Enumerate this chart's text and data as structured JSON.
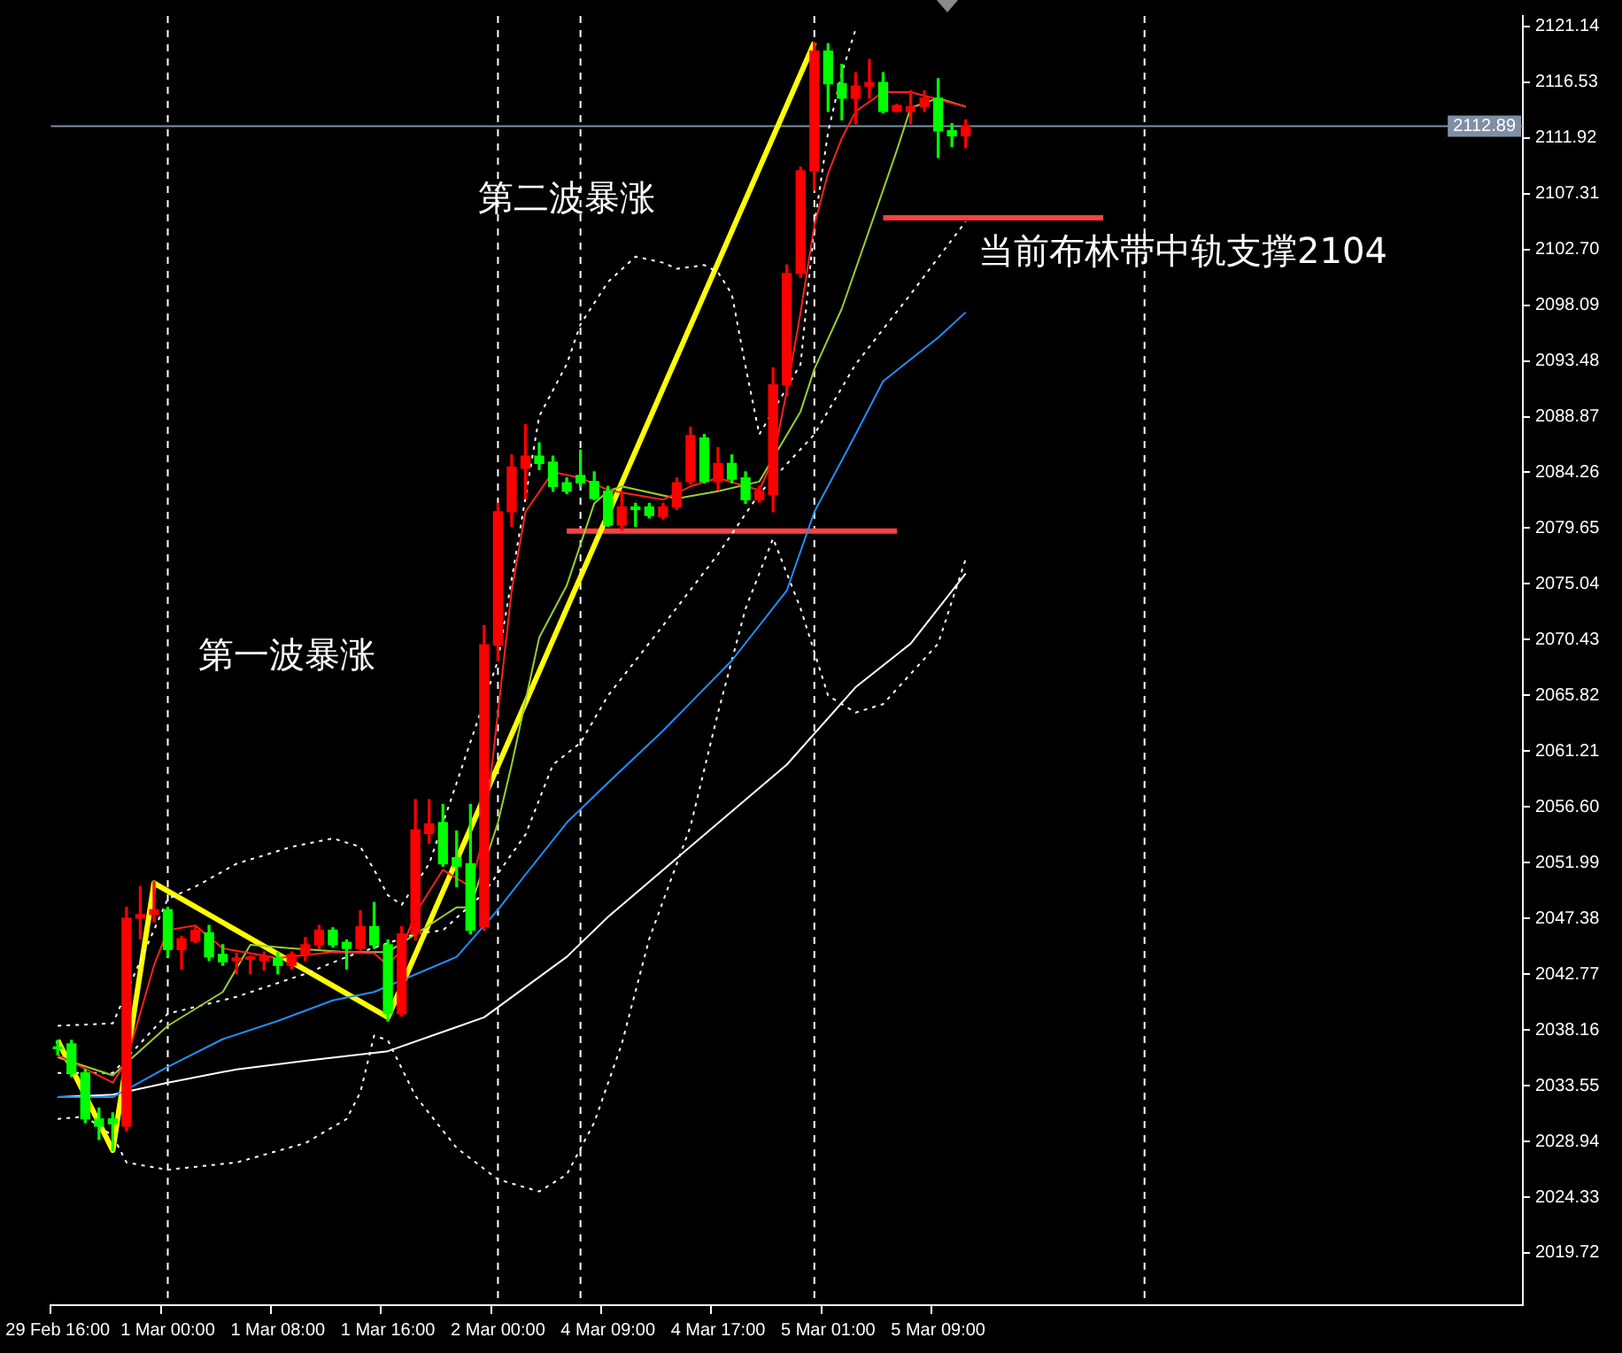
{
  "chart_data": {
    "type": "candlestick",
    "categories": [
      "29 Feb 16:00",
      null,
      null,
      null,
      null,
      null,
      null,
      null,
      "1 Mar 00:00",
      null,
      null,
      null,
      null,
      null,
      null,
      null,
      "1 Mar 08:00",
      null,
      null,
      null,
      null,
      null,
      null,
      null,
      "1 Mar 16:00",
      null,
      null,
      null,
      null,
      null,
      null,
      null,
      "2 Mar 00:00",
      null,
      null,
      null,
      null,
      null,
      null,
      null,
      "4 Mar 09:00",
      null,
      null,
      null,
      null,
      null,
      null,
      null,
      "4 Mar 17:00",
      null,
      null,
      null,
      null,
      null,
      null,
      null,
      "5 Mar 01:00",
      null,
      null,
      null,
      null,
      null,
      null,
      null,
      "5 Mar 09:00",
      null,
      null,
      null,
      null,
      null,
      null,
      null,
      null,
      null,
      null,
      null,
      null,
      null,
      null,
      null,
      null,
      null,
      null,
      null,
      null,
      null,
      null,
      null,
      null,
      null,
      null,
      null,
      null,
      null,
      null,
      null,
      null,
      null,
      null,
      null,
      null,
      null,
      null,
      null,
      null,
      null,
      null
    ],
    "ohlc": [
      [
        2036.7,
        2037.3,
        2036.1,
        2036.6
      ],
      [
        2037.0,
        2037.3,
        2034.3,
        2034.6
      ],
      [
        2034.6,
        2034.9,
        2030.5,
        2030.8
      ],
      [
        2030.8,
        2031.7,
        2029.1,
        2030.2
      ],
      [
        2030.8,
        2031.3,
        2028.2,
        2030.4
      ],
      [
        2030.2,
        2048.3,
        2029.8,
        2047.4
      ],
      [
        2047.4,
        2050.0,
        2045.7,
        2047.7
      ],
      [
        2047.7,
        2050.4,
        2047.1,
        2048.1
      ],
      [
        2048.1,
        2048.3,
        2044.2,
        2044.8
      ],
      [
        2044.8,
        2045.9,
        2043.2,
        2045.7
      ],
      [
        2045.5,
        2046.7,
        2045.4,
        2046.4
      ],
      [
        2046.2,
        2046.8,
        2043.9,
        2044.2
      ],
      [
        2044.4,
        2045.2,
        2043.5,
        2043.8
      ],
      [
        2043.9,
        2044.5,
        2042.8,
        2044.1
      ],
      [
        2044.0,
        2044.3,
        2042.8,
        2044.2
      ],
      [
        2043.9,
        2044.6,
        2043.1,
        2044.2
      ],
      [
        2044.1,
        2044.6,
        2042.8,
        2043.5
      ],
      [
        2043.5,
        2044.6,
        2043.2,
        2044.4
      ],
      [
        2044.4,
        2045.8,
        2043.9,
        2045.2
      ],
      [
        2045.2,
        2046.8,
        2044.9,
        2046.4
      ],
      [
        2046.4,
        2046.6,
        2045.0,
        2045.2
      ],
      [
        2045.4,
        2045.6,
        2043.2,
        2044.9
      ],
      [
        2044.9,
        2048.0,
        2044.7,
        2046.7
      ],
      [
        2046.7,
        2048.7,
        2044.9,
        2045.2
      ],
      [
        2045.2,
        2045.6,
        2038.9,
        2039.5
      ],
      [
        2039.5,
        2046.7,
        2039.3,
        2046.1
      ],
      [
        2046.1,
        2057.2,
        2045.6,
        2054.7
      ],
      [
        2054.4,
        2057.2,
        2053.6,
        2055.2
      ],
      [
        2055.3,
        2056.8,
        2051.7,
        2051.9
      ],
      [
        2052.4,
        2054.6,
        2050.0,
        2051.7
      ],
      [
        2051.9,
        2056.8,
        2046.1,
        2046.4
      ],
      [
        2046.7,
        2071.6,
        2046.4,
        2070.0
      ],
      [
        2070.0,
        2081.7,
        2068.7,
        2081.0
      ],
      [
        2081.0,
        2085.7,
        2079.8,
        2084.7
      ],
      [
        2084.6,
        2088.2,
        2082.1,
        2085.6
      ],
      [
        2085.6,
        2086.7,
        2084.5,
        2085.0
      ],
      [
        2085.1,
        2085.6,
        2082.7,
        2083.1
      ],
      [
        2083.4,
        2083.8,
        2082.5,
        2082.7
      ],
      [
        2084.0,
        2086.1,
        2083.1,
        2083.4
      ],
      [
        2083.5,
        2084.3,
        2082.0,
        2082.1
      ],
      [
        2082.7,
        2083.1,
        2079.8,
        2079.9
      ],
      [
        2079.9,
        2082.7,
        2079.5,
        2081.4
      ],
      [
        2081.4,
        2081.7,
        2079.8,
        2081.2
      ],
      [
        2081.4,
        2081.7,
        2080.5,
        2080.7
      ],
      [
        2080.6,
        2081.7,
        2080.4,
        2081.4
      ],
      [
        2081.4,
        2083.8,
        2081.2,
        2083.4
      ],
      [
        2083.5,
        2088.0,
        2083.3,
        2087.3
      ],
      [
        2087.1,
        2087.4,
        2083.4,
        2083.5
      ],
      [
        2083.5,
        2086.3,
        2082.8,
        2085.0
      ],
      [
        2085.0,
        2085.7,
        2083.4,
        2083.7
      ],
      [
        2083.8,
        2084.3,
        2081.7,
        2082.0
      ],
      [
        2082.0,
        2083.1,
        2081.8,
        2082.7
      ],
      [
        2082.4,
        2092.9,
        2081.0,
        2091.5
      ],
      [
        2091.5,
        2101.4,
        2090.6,
        2100.7
      ],
      [
        2100.7,
        2109.5,
        2100.4,
        2109.2
      ],
      [
        2109.2,
        2119.8,
        2107.6,
        2119.1
      ],
      [
        2119.1,
        2119.7,
        2114.1,
        2116.4
      ],
      [
        2116.4,
        2118.0,
        2113.4,
        2115.2
      ],
      [
        2115.2,
        2117.3,
        2113.1,
        2116.2
      ],
      [
        2116.2,
        2118.4,
        2115.2,
        2116.5
      ],
      [
        2116.5,
        2117.3,
        2114.0,
        2114.1
      ],
      [
        2114.1,
        2114.7,
        2114.1,
        2114.6
      ],
      [
        2114.1,
        2115.8,
        2113.1,
        2114.5
      ],
      [
        2114.5,
        2115.8,
        2114.1,
        2115.2
      ],
      [
        2115.2,
        2116.8,
        2110.3,
        2112.5
      ],
      [
        2112.5,
        2113.1,
        2111.2,
        2112.1
      ],
      [
        2112.1,
        2113.4,
        2111.1,
        2112.89
      ],
      null,
      null,
      null,
      null,
      null,
      null,
      null,
      null,
      null,
      null,
      null,
      null,
      null,
      null,
      null,
      null,
      null,
      null,
      null,
      null,
      null,
      null,
      null,
      null,
      null,
      null,
      null,
      null,
      null,
      null,
      null,
      null,
      null,
      null,
      null,
      null,
      null,
      null,
      null,
      null
    ],
    "colors": [
      "#00ff00",
      "#00ff00",
      "#00ff00",
      "#00ff00",
      "#00ff00",
      "#ff0000",
      "#ff0000",
      "#ff0000",
      "#00ff00",
      "#ff0000",
      "#ff0000",
      "#00ff00",
      "#00ff00",
      "#ff0000",
      "#ff0000",
      "#ff0000",
      "#00ff00",
      "#ff0000",
      "#ff0000",
      "#ff0000",
      "#00ff00",
      "#00ff00",
      "#ff0000",
      "#00ff00",
      "#00ff00",
      "#ff0000",
      "#ff0000",
      "#ff0000",
      "#00ff00",
      "#00ff00",
      "#00ff00",
      "#ff0000",
      "#ff0000",
      "#ff0000",
      "#ff0000",
      "#00ff00",
      "#00ff00",
      "#00ff00",
      "#00ff00",
      "#00ff00",
      "#00ff00",
      "#ff0000",
      "#00ff00",
      "#00ff00",
      "#ff0000",
      "#ff0000",
      "#ff0000",
      "#00ff00",
      "#ff0000",
      "#00ff00",
      "#00ff00",
      "#ff0000",
      "#ff0000",
      "#ff0000",
      "#ff0000",
      "#ff0000",
      "#00ff00",
      "#00ff00",
      "#ff0000",
      "#ff0000",
      "#00ff00",
      "#ff0000",
      "#ff0000",
      "#ff0000",
      "#00ff00",
      "#00ff00",
      "#ff0000",
      null,
      null,
      null,
      null,
      null,
      null,
      null,
      null,
      null,
      null,
      null,
      null,
      null,
      null,
      null,
      null,
      null,
      null,
      null,
      null,
      null,
      null,
      null,
      null,
      null,
      null,
      null,
      null,
      null,
      null,
      null,
      null,
      null,
      null,
      null,
      null,
      null,
      null,
      null,
      null
    ],
    "series": [
      {
        "type": "line",
        "color": "#ff2020",
        "line_style": "solid",
        "values": [
          2036.1,
          null,
          null,
          null,
          2033.8,
          2035.6,
          null,
          2043.5,
          2046.4,
          null,
          2046.8,
          null,
          2044.9,
          null,
          null,
          null,
          2044.1,
          null,
          null,
          null,
          2044.6,
          null,
          null,
          2044.5,
          2043.5,
          2044.8,
          2047.8,
          null,
          2051.4,
          null,
          2050.0,
          2054.3,
          2064.4,
          2074.5,
          2081.0,
          null,
          2084.3,
          null,
          2083.8,
          null,
          2082.8,
          null,
          null,
          null,
          2082.0,
          null,
          2083.1,
          null,
          2083.8,
          null,
          2083.1,
          2082.8,
          2085.3,
          2091.0,
          2097.5,
          2104.7,
          2109.0,
          2111.9,
          2114.1,
          null,
          2115.7,
          null,
          2115.7,
          null,
          2115.1,
          null,
          2114.5,
          null,
          null,
          null,
          null,
          null,
          null,
          null,
          null,
          null,
          null,
          null,
          null,
          null,
          null,
          null,
          null,
          null,
          null,
          null,
          null,
          null,
          null,
          null,
          null,
          null,
          null,
          null,
          null,
          null,
          null,
          null,
          null,
          null,
          null,
          null,
          null,
          null,
          null,
          null,
          null
        ]
      },
      {
        "type": "line",
        "color": "#9acd32",
        "line_style": "solid",
        "values": [
          2035.9,
          null,
          null,
          null,
          2034.4,
          null,
          null,
          null,
          2038.5,
          null,
          null,
          null,
          2041.3,
          null,
          2045.2,
          null,
          null,
          2044.9,
          null,
          null,
          null,
          2044.6,
          null,
          null,
          2044.6,
          null,
          null,
          null,
          null,
          2048.3,
          2048.3,
          null,
          2055.3,
          2060.1,
          null,
          2070.6,
          null,
          2074.9,
          null,
          2081.7,
          2082.7,
          2083.1,
          null,
          null,
          null,
          2082.1,
          null,
          null,
          2082.7,
          null,
          null,
          2083.5,
          null,
          null,
          2089.3,
          2092.8,
          null,
          2097.8,
          null,
          null,
          2107.6,
          2110.9,
          2114.4,
          null,
          2115.2,
          null,
          2114.5,
          null,
          null,
          null,
          null,
          null,
          null,
          null,
          null,
          null,
          null,
          null,
          null,
          null,
          null,
          null,
          null,
          null,
          null,
          null,
          null,
          null,
          null,
          null,
          null,
          null,
          null,
          null,
          null,
          null,
          null,
          null,
          null,
          null,
          null,
          null,
          null,
          null,
          null,
          null,
          null
        ]
      },
      {
        "type": "line",
        "color": "#1e90ff",
        "line_style": "solid",
        "values": [
          2032.6,
          null,
          null,
          null,
          2032.6,
          null,
          null,
          null,
          2035.1,
          null,
          null,
          null,
          2037.4,
          null,
          null,
          null,
          2038.9,
          null,
          null,
          null,
          2040.6,
          null,
          null,
          2041.3,
          null,
          null,
          null,
          null,
          null,
          2044.2,
          null,
          null,
          2048.1,
          null,
          2051.0,
          null,
          null,
          2055.3,
          null,
          null,
          2058.6,
          null,
          null,
          null,
          2062.9,
          null,
          null,
          null,
          null,
          2068.7,
          null,
          null,
          null,
          2074.5,
          null,
          2081.0,
          null,
          null,
          2087.4,
          null,
          2091.8,
          null,
          null,
          null,
          2095.4,
          null,
          2097.5,
          null,
          null,
          null,
          null,
          null,
          null,
          null,
          null,
          null,
          null,
          null,
          null,
          null,
          null,
          null,
          null,
          null,
          null,
          null,
          null,
          null,
          null,
          null,
          null,
          null,
          null,
          null,
          null,
          null,
          null,
          null,
          null,
          null,
          null,
          null,
          null,
          null,
          null,
          null,
          null
        ]
      },
      {
        "type": "line",
        "color": "#ffffff",
        "line_style": "solid",
        "values": [
          2032.6,
          null,
          null,
          null,
          2032.8,
          null,
          null,
          null,
          2033.8,
          null,
          null,
          null,
          null,
          2034.9,
          null,
          null,
          null,
          null,
          2035.6,
          null,
          null,
          null,
          null,
          null,
          2036.4,
          null,
          null,
          null,
          null,
          null,
          null,
          2039.2,
          null,
          null,
          null,
          null,
          null,
          2044.2,
          null,
          null,
          2047.5,
          null,
          null,
          null,
          null,
          null,
          null,
          2054.3,
          null,
          null,
          null,
          null,
          null,
          2060.1,
          null,
          null,
          null,
          null,
          2066.5,
          null,
          null,
          null,
          2070.1,
          null,
          null,
          null,
          2075.9,
          null,
          null,
          null,
          null,
          null,
          null,
          null,
          null,
          null,
          null,
          null,
          null,
          null,
          null,
          null,
          null,
          null,
          null,
          null,
          null,
          null,
          null,
          null,
          null,
          null,
          null,
          null,
          null,
          null,
          null,
          null,
          null,
          null,
          null,
          null,
          null,
          null,
          null,
          null,
          null
        ]
      },
      {
        "type": "line",
        "color": "#ffffff",
        "line_style": "dotted",
        "values": [
          2034.6,
          null,
          null,
          null,
          2034.6,
          null,
          null,
          null,
          2039.5,
          null,
          null,
          null,
          null,
          2040.9,
          null,
          null,
          null,
          null,
          2042.8,
          null,
          null,
          2044.2,
          null,
          null,
          null,
          null,
          2046.1,
          null,
          2046.4,
          null,
          null,
          2049.5,
          null,
          null,
          2054.3,
          null,
          2060.1,
          null,
          2061.9,
          null,
          2065.8,
          null,
          null,
          null,
          2071.6,
          null,
          null,
          null,
          2077.5,
          null,
          null,
          2082.5,
          null,
          null,
          null,
          2087.4,
          null,
          null,
          2093.2,
          null,
          null,
          null,
          2099.0,
          null,
          null,
          null,
          2105.0,
          null,
          null,
          null,
          null,
          null,
          null,
          null,
          null,
          null,
          null,
          null,
          null,
          null,
          null,
          null,
          null,
          null,
          null,
          null,
          null,
          null,
          null,
          null,
          null,
          null,
          null,
          null,
          null,
          null,
          null,
          null,
          null,
          null,
          null,
          null,
          null,
          null,
          null,
          null,
          null
        ]
      },
      {
        "type": "line",
        "color": "#ffffff",
        "line_style": "dotted",
        "values": [
          2038.5,
          null,
          null,
          null,
          2038.7,
          null,
          null,
          null,
          2049.0,
          null,
          2050.0,
          null,
          null,
          2051.9,
          null,
          null,
          null,
          2053.3,
          null,
          null,
          2054.0,
          null,
          2053.3,
          2051.4,
          2049.3,
          2048.5,
          null,
          2051.9,
          null,
          2058.6,
          null,
          null,
          2068.7,
          null,
          null,
          2088.9,
          null,
          2093.2,
          2096.5,
          null,
          2100.0,
          null,
          2102.1,
          null,
          2101.6,
          2101.1,
          null,
          2101.4,
          2100.8,
          2099.0,
          2093.0,
          2087.4,
          null,
          null,
          2093.2,
          2104.7,
          2112.4,
          2117.3,
          2120.9,
          null,
          null,
          null,
          null,
          null,
          null,
          null,
          null,
          null,
          null,
          null,
          null,
          null,
          null,
          null,
          null,
          null,
          null,
          null,
          null,
          null,
          null,
          null,
          null,
          null,
          null,
          null,
          null,
          null,
          null,
          null,
          null,
          null,
          null,
          null,
          null,
          null,
          null,
          null,
          null,
          null,
          null,
          null,
          null,
          null,
          null,
          null,
          null
        ]
      },
      {
        "type": "line",
        "color": "#ffffff",
        "line_style": "dotted",
        "values": [
          2030.8,
          null,
          2031.0,
          null,
          2029.4,
          2027.2,
          null,
          null,
          2026.6,
          null,
          null,
          null,
          null,
          2027.2,
          null,
          null,
          null,
          null,
          2028.8,
          null,
          null,
          2030.8,
          2033.0,
          2037.7,
          2037.3,
          null,
          2032.7,
          null,
          null,
          2028.4,
          null,
          null,
          2025.8,
          null,
          null,
          2024.8,
          null,
          2026.2,
          null,
          2030.5,
          null,
          2037.0,
          null,
          2045.7,
          null,
          null,
          2055.0,
          null,
          2064.4,
          null,
          2073.0,
          null,
          2078.8,
          null,
          2073.0,
          null,
          2065.8,
          null,
          2064.4,
          null,
          2065.1,
          null,
          null,
          null,
          2070.1,
          null,
          2077.1,
          null,
          null,
          null,
          null,
          null,
          null,
          null,
          null,
          null,
          null,
          null,
          null,
          null,
          null,
          null,
          null,
          null,
          null,
          null,
          null,
          null,
          null,
          null,
          null,
          null,
          null,
          null,
          null,
          null,
          null,
          null,
          null,
          null,
          null,
          null,
          null,
          null,
          null,
          null,
          null
        ]
      },
      {
        "type": "line",
        "color": "#ffff00",
        "line_style": "solid",
        "values": [
          2037.3,
          null,
          null,
          null,
          2028.2,
          null,
          null,
          2050.3,
          null,
          null,
          null,
          null,
          null,
          null,
          null,
          null,
          null,
          null,
          null,
          null,
          null,
          null,
          null,
          null,
          2039.2,
          null,
          null,
          null,
          null,
          null,
          null,
          null,
          null,
          null,
          null,
          null,
          null,
          null,
          null,
          null,
          null,
          null,
          null,
          null,
          null,
          null,
          null,
          null,
          null,
          null,
          null,
          null,
          null,
          null,
          null,
          2119.8,
          null,
          null,
          null,
          null,
          null,
          null,
          null,
          null,
          null,
          null,
          null,
          null,
          null,
          null,
          null,
          null,
          null,
          null,
          null,
          null,
          null,
          null,
          null,
          null,
          null,
          null,
          null,
          null,
          null,
          null,
          null,
          null,
          null,
          null,
          null,
          null,
          null,
          null,
          null,
          null,
          null,
          null,
          null,
          null,
          null,
          null,
          null,
          null,
          null,
          null,
          null
        ]
      },
      {
        "type": "line",
        "color": "#ff4040",
        "line_style": "solid",
        "values": [
          null,
          null,
          null,
          null,
          null,
          null,
          null,
          null,
          null,
          null,
          null,
          null,
          null,
          null,
          null,
          null,
          null,
          null,
          null,
          null,
          null,
          null,
          null,
          null,
          null,
          null,
          null,
          null,
          null,
          null,
          null,
          null,
          null,
          null,
          null,
          null,
          null,
          2079.4,
          null,
          null,
          null,
          null,
          null,
          null,
          null,
          null,
          null,
          null,
          null,
          null,
          null,
          null,
          null,
          null,
          null,
          null,
          null,
          null,
          null,
          null,
          null,
          2079.4,
          null,
          null,
          null,
          null,
          null,
          null,
          null,
          null,
          null,
          null,
          null,
          null,
          null,
          null,
          null,
          null,
          null,
          null,
          null,
          null,
          null,
          null,
          null,
          null,
          null,
          null,
          null,
          null,
          null,
          null,
          null,
          null,
          null,
          null,
          null,
          null,
          null,
          null,
          null,
          null,
          null,
          null,
          null,
          null,
          null
        ]
      },
      {
        "type": "line",
        "color": "#ff4040",
        "line_style": "solid",
        "values": [
          null,
          null,
          null,
          null,
          null,
          null,
          null,
          null,
          null,
          null,
          null,
          null,
          null,
          null,
          null,
          null,
          null,
          null,
          null,
          null,
          null,
          null,
          null,
          null,
          null,
          null,
          null,
          null,
          null,
          null,
          null,
          null,
          null,
          null,
          null,
          null,
          null,
          null,
          null,
          null,
          null,
          null,
          null,
          null,
          null,
          null,
          null,
          null,
          null,
          null,
          null,
          null,
          null,
          null,
          null,
          null,
          null,
          null,
          null,
          null,
          2105.3,
          null,
          null,
          null,
          null,
          null,
          null,
          null,
          null,
          null,
          null,
          null,
          null,
          null,
          null,
          null,
          2105.3,
          null,
          null,
          null,
          null,
          null,
          null,
          null,
          null,
          null,
          null,
          null,
          null,
          null,
          null,
          null,
          null,
          null,
          null,
          null,
          null,
          null,
          null,
          null,
          null,
          null,
          null,
          null,
          null,
          null,
          null
        ]
      }
    ],
    "ylim": [
      2015.4,
      2122.0
    ],
    "yticks": [
      2121.14,
      2116.53,
      2111.92,
      2107.31,
      {
        "value": 2102.7,
        "label": "2102.70"
      },
      2098.09,
      2093.48,
      2088.87,
      2084.26,
      2079.65,
      2075.04,
      2070.43,
      2065.82,
      2061.21,
      {
        "value": 2056.6,
        "label": "2056.60"
      },
      2051.99,
      2047.38,
      2042.77,
      2038.16,
      2033.55,
      2028.94,
      2024.33,
      2019.72
    ],
    "ref_lines": [
      {
        "axis": "y",
        "value": 2112.89,
        "label": "2112.89",
        "color": "#7f8fa6",
        "line_style": "solid"
      }
    ],
    "annotations": [
      "第二波暴涨",
      "第一波暴涨",
      "当前布林带中轨支撑2104"
    ]
  }
}
